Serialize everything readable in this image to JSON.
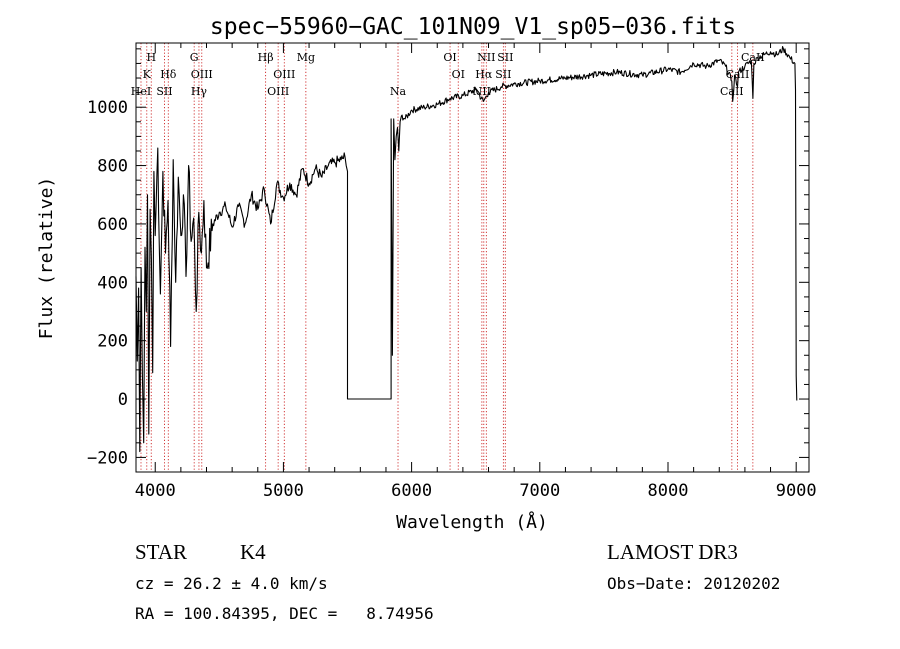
{
  "chart_data": {
    "type": "line",
    "title": "spec−55960−GAC_101N09_V1_sp05−036.fits",
    "xlabel": "Wavelength (Å)",
    "ylabel": "Flux (relative)",
    "xlim": [
      3850,
      9100
    ],
    "ylim": [
      -250,
      1220
    ],
    "xticks": [
      4000,
      5000,
      6000,
      7000,
      8000,
      9000
    ],
    "yticks": [
      -200,
      0,
      200,
      400,
      600,
      800,
      1000
    ],
    "xtick_labels": [
      "4000",
      "5000",
      "6000",
      "7000",
      "8000",
      "9000"
    ],
    "ytick_labels": [
      "−200",
      "0",
      "200",
      "400",
      "600",
      "800",
      "1000"
    ],
    "x_minor_step": 200,
    "y_minor_step": 50,
    "series": [
      {
        "name": "flux",
        "x": [
          3850,
          3860,
          3870,
          3880,
          3890,
          3900,
          3910,
          3920,
          3930,
          3940,
          3950,
          3960,
          3970,
          3980,
          3990,
          4000,
          4020,
          4040,
          4060,
          4080,
          4100,
          4120,
          4140,
          4160,
          4180,
          4200,
          4220,
          4240,
          4260,
          4280,
          4300,
          4320,
          4340,
          4360,
          4380,
          4400,
          4450,
          4500,
          4550,
          4600,
          4650,
          4700,
          4750,
          4800,
          4850,
          4900,
          4950,
          5000,
          5050,
          5100,
          5150,
          5200,
          5250,
          5300,
          5350,
          5400,
          5450,
          5480,
          5490,
          5500,
          5500,
          5840,
          5840,
          5850,
          5860,
          5870,
          5880,
          5890,
          5900,
          5910,
          5920,
          5950,
          6000,
          6100,
          6200,
          6300,
          6400,
          6500,
          6560,
          6600,
          6700,
          6800,
          7000,
          7200,
          7400,
          7600,
          7800,
          8000,
          8100,
          8200,
          8300,
          8400,
          8450,
          8498,
          8505,
          8520,
          8542,
          8550,
          8600,
          8650,
          8662,
          8670,
          8700,
          8750,
          8800,
          8850,
          8900,
          8950,
          8990,
          8995,
          9000,
          9005
        ],
        "values": [
          420,
          130,
          380,
          -180,
          450,
          80,
          -150,
          520,
          300,
          700,
          -120,
          650,
          480,
          90,
          780,
          560,
          860,
          360,
          780,
          500,
          680,
          180,
          820,
          400,
          760,
          560,
          700,
          420,
          800,
          540,
          620,
          300,
          640,
          500,
          680,
          450,
          600,
          640,
          660,
          590,
          660,
          600,
          700,
          650,
          720,
          600,
          740,
          690,
          740,
          700,
          790,
          740,
          790,
          760,
          800,
          810,
          820,
          830,
          800,
          780,
          0,
          0,
          960,
          150,
          960,
          820,
          900,
          930,
          850,
          950,
          970,
          960,
          990,
          1000,
          1010,
          1030,
          1040,
          1060,
          1020,
          1050,
          1070,
          1080,
          1090,
          1100,
          1110,
          1120,
          1110,
          1130,
          1120,
          1150,
          1140,
          1160,
          1140,
          1090,
          1020,
          1110,
          1070,
          1120,
          1140,
          1160,
          1030,
          1150,
          1170,
          1180,
          1190,
          1180,
          1200,
          1170,
          1150,
          1060,
          80,
          -5
        ]
      }
    ],
    "lines": [
      {
        "wl": 3889,
        "label": "HeI",
        "row": 3
      },
      {
        "wl": 3934,
        "label": "K",
        "row": 1
      },
      {
        "wl": 3969,
        "label": "H",
        "row": 0
      },
      {
        "wl": 4072,
        "label": "SII",
        "row": 3
      },
      {
        "wl": 4102,
        "label": "Hδ",
        "row": 1
      },
      {
        "wl": 4304,
        "label": "G",
        "row": 0
      },
      {
        "wl": 4341,
        "label": "Hγ",
        "row": 3
      },
      {
        "wl": 4363,
        "label": "OIII",
        "row": 1
      },
      {
        "wl": 4861,
        "label": "Hβ",
        "row": 0
      },
      {
        "wl": 4959,
        "label": "OIII",
        "row": 3
      },
      {
        "wl": 5007,
        "label": "OIII",
        "row": 1
      },
      {
        "wl": 5175,
        "label": "Mg",
        "row": 0
      },
      {
        "wl": 5894,
        "label": "Na",
        "row": 3
      },
      {
        "wl": 6300,
        "label": "OI",
        "row": 0
      },
      {
        "wl": 6364,
        "label": "OI",
        "row": 2
      },
      {
        "wl": 6548,
        "label": "NII",
        "row": 3
      },
      {
        "wl": 6563,
        "label": "Hα",
        "row": 2
      },
      {
        "wl": 6583,
        "label": "NII",
        "row": 0
      },
      {
        "wl": 6716,
        "label": "SII",
        "row": 2
      },
      {
        "wl": 6731,
        "label": "SII",
        "row": 0
      },
      {
        "wl": 8498,
        "label": "CaII",
        "row": 3
      },
      {
        "wl": 8542,
        "label": "CaII",
        "row": 1
      },
      {
        "wl": 8662,
        "label": "CaII",
        "row": 0
      }
    ]
  },
  "info": {
    "class": "STAR",
    "subclass": "K4",
    "survey": "LAMOST DR3",
    "cz": "cz = 26.2 ± 4.0 km/s",
    "obs_date": "Obs−Date: 20120202",
    "coords": "RA = 100.84395, DEC =   8.74956"
  }
}
